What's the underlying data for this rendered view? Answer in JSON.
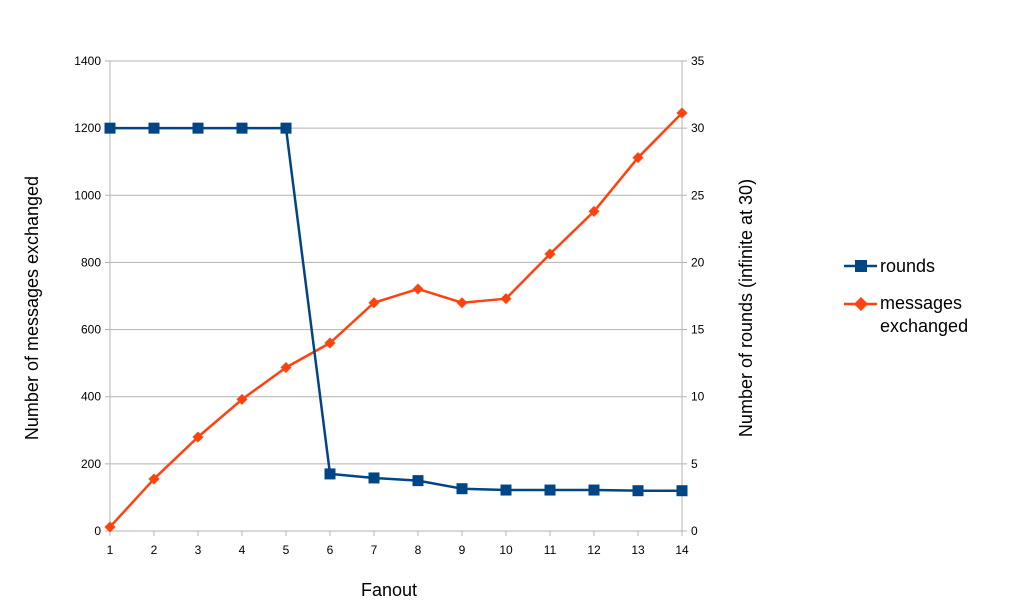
{
  "chart_data": {
    "type": "line",
    "x": [
      1,
      2,
      3,
      4,
      5,
      6,
      7,
      8,
      9,
      10,
      11,
      12,
      13,
      14
    ],
    "xlabel": "Fanout",
    "ylabel_left": "Number of messages exchanged",
    "ylabel_right": "Number of rounds (infinite at 30)",
    "ylim_left": [
      0,
      1400
    ],
    "ylim_right": [
      0,
      35
    ],
    "yticks_left": [
      0,
      200,
      400,
      600,
      800,
      1000,
      1200,
      1400
    ],
    "yticks_right": [
      0,
      5,
      10,
      15,
      20,
      25,
      30,
      35
    ],
    "grid": true,
    "legend": "right",
    "series": [
      {
        "name": "rounds",
        "axis": "right",
        "color": "#004586",
        "marker": "square",
        "values": [
          30,
          30,
          30,
          30,
          30,
          4.25,
          3.95,
          3.75,
          3.15,
          3.05,
          3.05,
          3.05,
          3.0,
          3.0
        ]
      },
      {
        "name": "messages exchanged",
        "axis": "left",
        "color": "#ff420e",
        "marker": "diamond",
        "values": [
          12,
          155,
          280,
          392,
          487,
          560,
          680,
          721,
          680,
          692,
          825,
          952,
          1112,
          1245
        ]
      }
    ]
  }
}
